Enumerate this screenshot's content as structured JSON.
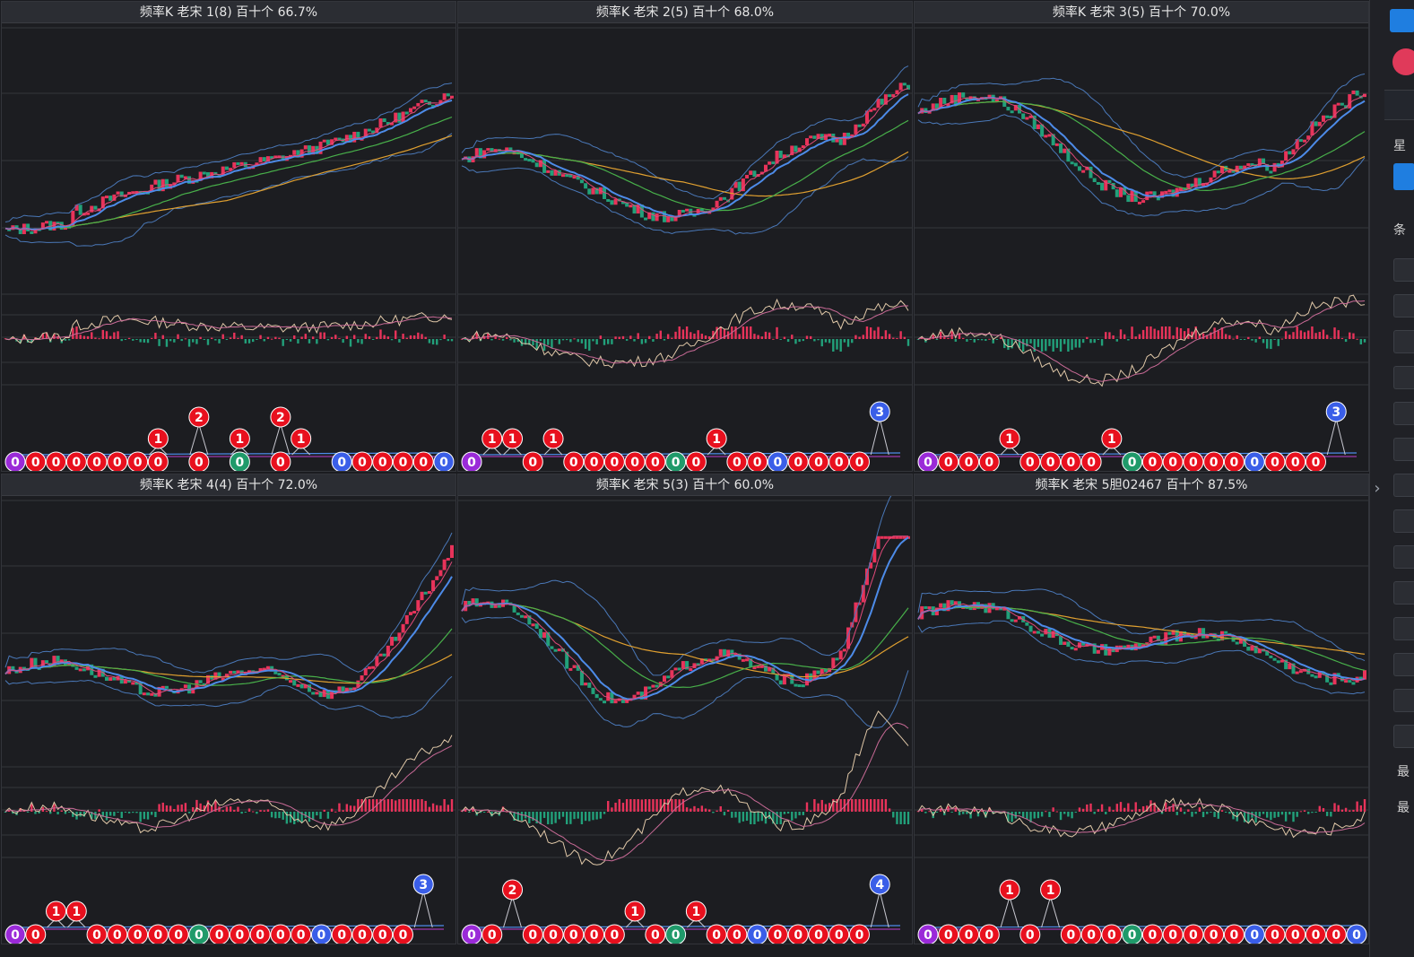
{
  "colors": {
    "up": "#e8335a",
    "down": "#22a07a",
    "ma_pink": "#e04a7a",
    "ma_blue": "#4d8be8",
    "ma_green": "#48b04a",
    "ma_orange": "#e0a030",
    "boll": "#4a78b8",
    "macd_dif": "#e0c8a8",
    "macd_dea": "#c86a96",
    "badge_red": "#e8101e",
    "badge_green": "#1f9a6a",
    "badge_blue": "#3a5ee8",
    "badge_purple": "#9a2ad8",
    "accent": "#1f7ee0"
  },
  "panels": [
    {
      "title": "频率K  老宋  1(8)  百十个  66.7%",
      "bottom_values": [
        "0",
        "0",
        "0",
        "0",
        "0",
        "0",
        "0",
        "0",
        "",
        "0",
        "",
        "0",
        "",
        "0",
        "",
        "",
        "0",
        "0",
        "0",
        "0",
        "0",
        "0"
      ],
      "bottom_colors": [
        "purple",
        "red",
        "red",
        "red",
        "red",
        "red",
        "red",
        "red",
        "",
        "red",
        "",
        "green",
        "",
        "red",
        "",
        "",
        "blue",
        "red",
        "red",
        "red",
        "red",
        "blue"
      ],
      "up_badges": [
        {
          "slot": 7,
          "level": 1,
          "value": "1",
          "color": "red"
        },
        {
          "slot": 9,
          "level": 2,
          "value": "2",
          "color": "red"
        },
        {
          "slot": 11,
          "level": 1,
          "value": "1",
          "color": "red"
        },
        {
          "slot": 13,
          "level": 2,
          "value": "2",
          "color": "red"
        },
        {
          "slot": 14,
          "level": 1,
          "value": "1",
          "color": "red"
        }
      ]
    },
    {
      "title": "频率K  老宋  2(5)  百十个  68.0%",
      "bottom_values": [
        "0",
        "",
        "",
        "0",
        "",
        "0",
        "0",
        "0",
        "0",
        "0",
        "0",
        "0",
        "",
        "0",
        "0",
        "0",
        "0",
        "0",
        "0",
        "0",
        "",
        ""
      ],
      "bottom_colors": [
        "purple",
        "",
        "",
        "red",
        "",
        "red",
        "red",
        "red",
        "red",
        "red",
        "green",
        "red",
        "",
        "red",
        "red",
        "blue",
        "red",
        "red",
        "red",
        "red",
        "",
        ""
      ],
      "up_badges": [
        {
          "slot": 1,
          "level": 1,
          "value": "1",
          "color": "red"
        },
        {
          "slot": 2,
          "level": 1,
          "value": "1",
          "color": "red"
        },
        {
          "slot": 4,
          "level": 1,
          "value": "1",
          "color": "red"
        },
        {
          "slot": 12,
          "level": 1,
          "value": "1",
          "color": "red"
        },
        {
          "slot": 20,
          "level": 3,
          "value": "3",
          "color": "blue"
        }
      ]
    },
    {
      "title": "频率K  老宋  3(5)  百十个  70.0%",
      "bottom_values": [
        "0",
        "0",
        "0",
        "0",
        "",
        "0",
        "0",
        "0",
        "0",
        "",
        "0",
        "0",
        "0",
        "0",
        "0",
        "0",
        "0",
        "0",
        "0",
        "0",
        "",
        ""
      ],
      "bottom_colors": [
        "purple",
        "red",
        "red",
        "red",
        "",
        "red",
        "red",
        "red",
        "red",
        "",
        "green",
        "red",
        "red",
        "red",
        "red",
        "red",
        "blue",
        "red",
        "red",
        "red",
        "",
        ""
      ],
      "up_badges": [
        {
          "slot": 4,
          "level": 1,
          "value": "1",
          "color": "red"
        },
        {
          "slot": 9,
          "level": 1,
          "value": "1",
          "color": "red"
        },
        {
          "slot": 20,
          "level": 3,
          "value": "3",
          "color": "blue"
        }
      ]
    },
    {
      "title": "频率K  老宋  4(4)  百十个  72.0%",
      "bottom_values": [
        "0",
        "0",
        "",
        "",
        "0",
        "0",
        "0",
        "0",
        "0",
        "0",
        "0",
        "0",
        "0",
        "0",
        "0",
        "0",
        "0",
        "0",
        "0",
        "0",
        "",
        ""
      ],
      "bottom_colors": [
        "purple",
        "red",
        "",
        "",
        "red",
        "red",
        "red",
        "red",
        "red",
        "green",
        "red",
        "red",
        "red",
        "red",
        "red",
        "blue",
        "red",
        "red",
        "red",
        "red",
        "",
        ""
      ],
      "up_badges": [
        {
          "slot": 2,
          "level": 1,
          "value": "1",
          "color": "red"
        },
        {
          "slot": 3,
          "level": 1,
          "value": "1",
          "color": "red"
        },
        {
          "slot": 20,
          "level": 3,
          "value": "3",
          "color": "blue"
        }
      ]
    },
    {
      "title": "频率K  老宋  5(3)  百十个  60.0%",
      "bottom_values": [
        "0",
        "0",
        "",
        "0",
        "0",
        "0",
        "0",
        "0",
        "",
        "0",
        "0",
        "",
        "0",
        "0",
        "0",
        "0",
        "0",
        "0",
        "0",
        "0",
        "",
        ""
      ],
      "bottom_colors": [
        "purple",
        "red",
        "",
        "red",
        "red",
        "red",
        "red",
        "red",
        "",
        "red",
        "green",
        "",
        "red",
        "red",
        "blue",
        "red",
        "red",
        "red",
        "red",
        "red",
        "",
        ""
      ],
      "up_badges": [
        {
          "slot": 2,
          "level": 2,
          "value": "2",
          "color": "red"
        },
        {
          "slot": 8,
          "level": 1,
          "value": "1",
          "color": "red"
        },
        {
          "slot": 11,
          "level": 1,
          "value": "1",
          "color": "red"
        },
        {
          "slot": 20,
          "level": 3,
          "value": "4",
          "color": "blue"
        }
      ]
    },
    {
      "title": "频率K  老宋  5胆02467  百十个  87.5%",
      "bottom_values": [
        "0",
        "0",
        "0",
        "0",
        "",
        "0",
        "",
        "0",
        "0",
        "0",
        "0",
        "0",
        "0",
        "0",
        "0",
        "0",
        "0",
        "0",
        "0",
        "0",
        "0",
        "0"
      ],
      "bottom_colors": [
        "purple",
        "red",
        "red",
        "red",
        "",
        "red",
        "",
        "red",
        "red",
        "red",
        "green",
        "red",
        "red",
        "red",
        "red",
        "red",
        "blue",
        "red",
        "red",
        "red",
        "red",
        "blue"
      ],
      "up_badges": [
        {
          "slot": 4,
          "level": 2,
          "value": "1",
          "color": "red"
        },
        {
          "slot": 6,
          "level": 2,
          "value": "1",
          "color": "red"
        }
      ]
    }
  ],
  "sidebar": {
    "items": [
      "星",
      "条",
      "最",
      "最"
    ]
  }
}
